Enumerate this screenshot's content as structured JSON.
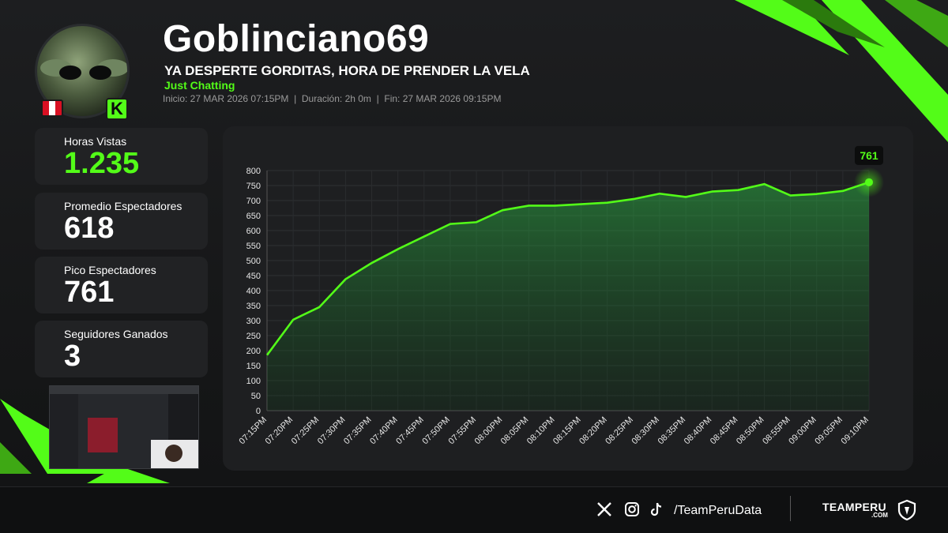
{
  "header": {
    "streamer": "Goblinciano69",
    "stream_title": "YA DESPERTE GORDITAS, HORA DE PRENDER LA VELA",
    "category": "Just Chatting",
    "meta": "Inicio: 27 MAR 2026 07:15PM  |  Duración: 2h 0m  |  Fin: 27 MAR 2026 09:15PM",
    "platform_icon": "kick-icon",
    "country_icon": "peru-flag-icon"
  },
  "stats": [
    {
      "label": "Horas Vistas",
      "value": "1.235"
    },
    {
      "label": "Promedio Espectadores",
      "value": "618"
    },
    {
      "label": "Pico Espectadores",
      "value": "761"
    },
    {
      "label": "Seguidores Ganados",
      "value": "3"
    }
  ],
  "footer": {
    "handle": "/TeamPeruData",
    "brand": "TEAMPERU",
    "brand_suffix": ".COM",
    "socials": [
      "x-icon",
      "instagram-icon",
      "tiktok-icon"
    ]
  },
  "colors": {
    "accent": "#53fc18",
    "panel": "#1e1f21",
    "background": "#161718"
  },
  "chart_data": {
    "type": "area",
    "x": [
      "07:15PM",
      "07:20PM",
      "07:25PM",
      "07:30PM",
      "07:35PM",
      "07:40PM",
      "07:45PM",
      "07:50PM",
      "07:55PM",
      "08:00PM",
      "08:05PM",
      "08:10PM",
      "08:15PM",
      "08:20PM",
      "08:25PM",
      "08:30PM",
      "08:35PM",
      "08:40PM",
      "08:45PM",
      "08:50PM",
      "08:55PM",
      "09:00PM",
      "09:05PM",
      "09:10PM"
    ],
    "values": [
      185,
      303,
      345,
      438,
      492,
      538,
      580,
      622,
      628,
      668,
      683,
      683,
      688,
      693,
      705,
      723,
      712,
      730,
      735,
      755,
      717,
      722,
      732,
      761
    ],
    "ylim": [
      0,
      800
    ],
    "yticks": [
      0,
      50,
      100,
      150,
      200,
      250,
      300,
      350,
      400,
      450,
      500,
      550,
      600,
      650,
      700,
      750,
      800
    ],
    "peak_label": "761",
    "grid": true,
    "legend": "none"
  }
}
